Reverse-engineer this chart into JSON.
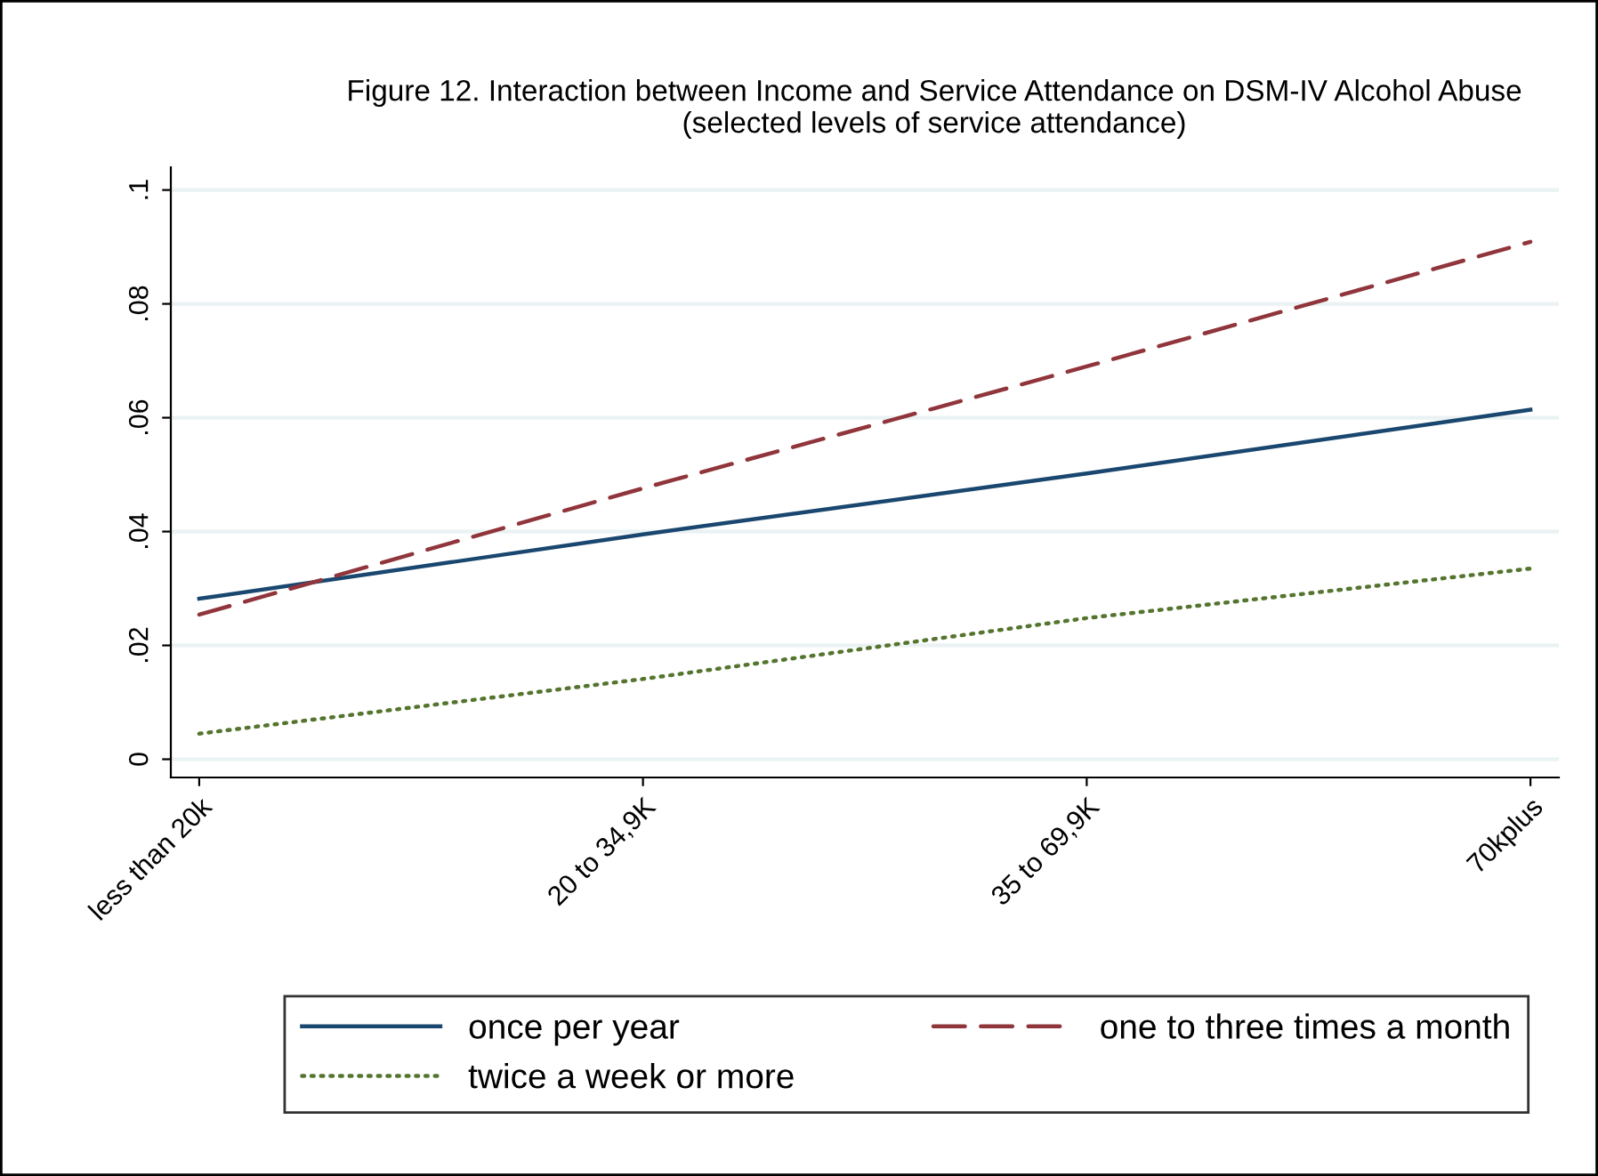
{
  "chart_data": {
    "type": "line",
    "title": "Figure 12. Interaction between Income and Service Attendance on DSM-IV Alcohol Abuse\n(selected levels of service attendance)",
    "categories": [
      "less than 20k",
      "20 to 34,9K",
      "35 to 69,9K",
      "70kplus"
    ],
    "series": [
      {
        "name": "once per year",
        "color": "#1a476f",
        "line_style": "solid",
        "values": [
          0.0282,
          0.0395,
          0.0502,
          0.0614
        ]
      },
      {
        "name": "one to three times a month",
        "color": "#90353b",
        "line_style": "dashed",
        "values": [
          0.0254,
          0.0476,
          0.069,
          0.0909
        ]
      },
      {
        "name": "twice a week or more",
        "color": "#55752f",
        "line_style": "dotted",
        "values": [
          0.0045,
          0.0141,
          0.0248,
          0.0335
        ]
      }
    ],
    "ylim": [
      -0.0032,
      0.104
    ],
    "yticks": [
      0,
      {
        "value": 0.02,
        "label": ".02"
      },
      {
        "value": 0.04,
        "label": ".04"
      },
      {
        "value": 0.06,
        "label": ".06"
      },
      {
        "value": 0.08,
        "label": ".08"
      },
      {
        "value": 0.1,
        "label": ".1"
      }
    ],
    "grid": "y",
    "legend": "bottom",
    "marker": "none"
  }
}
